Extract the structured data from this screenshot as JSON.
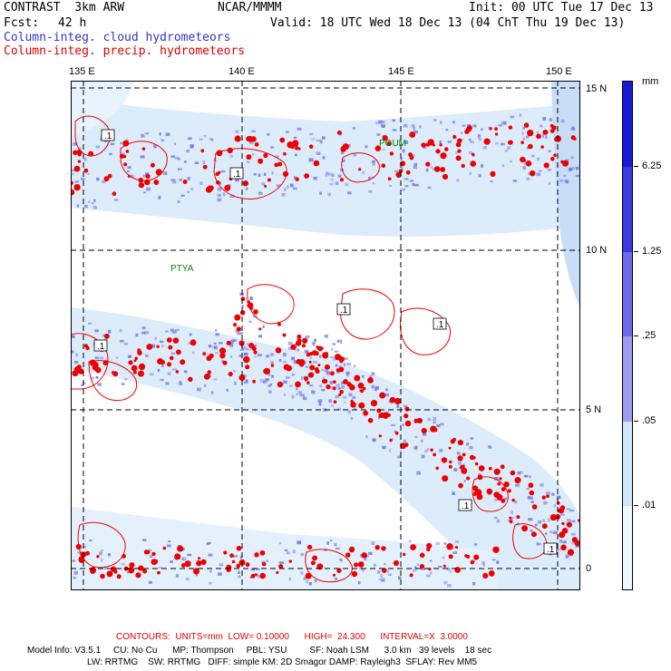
{
  "header": {
    "model": "CONTRAST  3km ARW",
    "center": "NCAR/MMMM",
    "init": "Init: 00 UTC Tue 17 Dec 13",
    "fcst_label": "Fcst:",
    "fcst_value": "42 h",
    "valid": "Valid: 18 UTC Wed 18 Dec 13 (04 ChT Thu 19 Dec 13)",
    "field_cloud": "Column-integ. cloud hydrometeors",
    "field_precip": "Column-integ. precip. hydrometeors"
  },
  "axes": {
    "lon_labels": [
      "135 E",
      "140 E",
      "145 E",
      "150 E"
    ],
    "lat_labels": [
      "15 N",
      "10 N",
      "5 N",
      "0"
    ]
  },
  "stations": {
    "pgum": "PGUM",
    "ptya": "PTYA"
  },
  "contour_labels": [
    ".1",
    ".1",
    ".1",
    ".1",
    ".1",
    ".1",
    ".1"
  ],
  "colorbar": {
    "units": "mm",
    "labels": [
      "6.25",
      "1.25",
      ".25",
      ".05",
      ".01"
    ],
    "colors": [
      "#1a1ad6",
      "#3a3ae0",
      "#6b6bea",
      "#9c9cf0",
      "#cfe6fb",
      "#eef7ff"
    ]
  },
  "footer": {
    "contours": "CONTOURS:  UNITS=mm  LOW= 0.10000      HIGH=  24.300      INTERVAL=X  3.0000",
    "model_info_1": "Model Info: V3.5.1     CU: No Cu      MP: Thompson     PBL: YSU         SF: Noah LSM      3.0 km   39 levels    18 sec",
    "model_info_2": "LW: RRTMG    SW: RRTMG   DIFF: simple KM: 2D Smagor DAMP: Rayleigh3  SFLAY: Rev MM5"
  },
  "colors": {
    "cloud": "#7a7ae6",
    "light": "#cfe6fb",
    "precip": "#ee0000"
  }
}
